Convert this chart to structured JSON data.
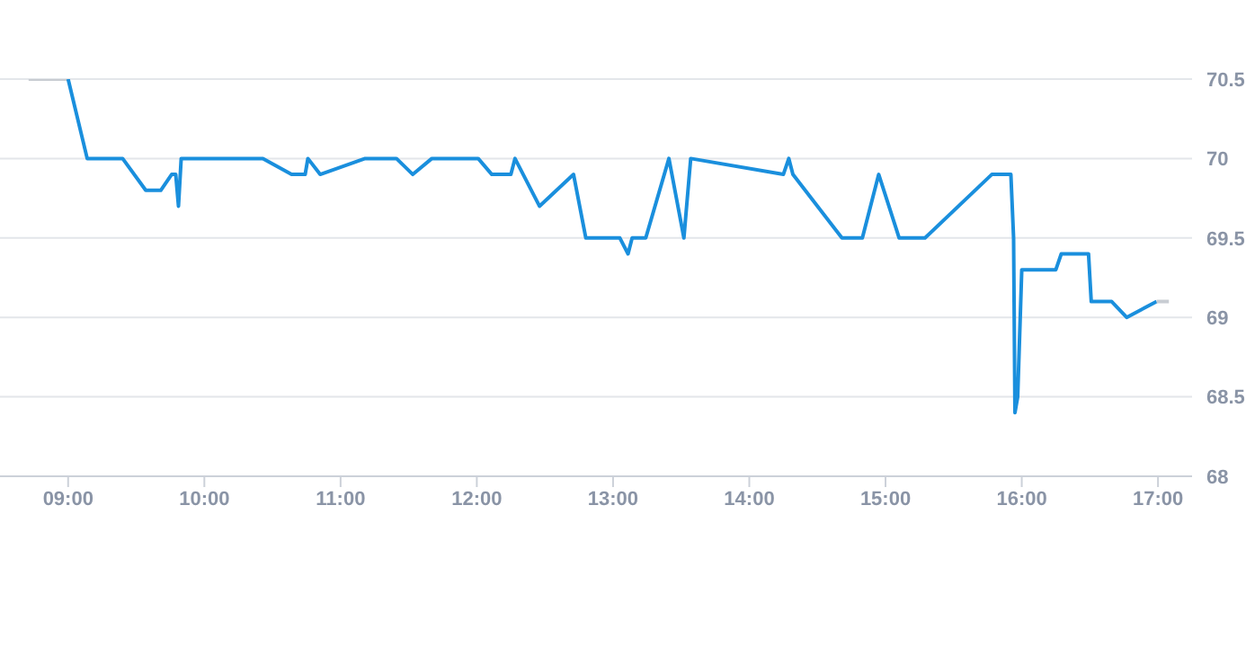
{
  "chart_data": {
    "type": "line",
    "xlim": [
      8.5,
      17.25
    ],
    "xticks": [
      {
        "value": 9,
        "label": "09:00"
      },
      {
        "value": 10,
        "label": "10:00"
      },
      {
        "value": 11,
        "label": "11:00"
      },
      {
        "value": 12,
        "label": "12:00"
      },
      {
        "value": 13,
        "label": "13:00"
      },
      {
        "value": 14,
        "label": "14:00"
      },
      {
        "value": 15,
        "label": "15:00"
      },
      {
        "value": 16,
        "label": "16:00"
      },
      {
        "value": 17,
        "label": "17:00"
      }
    ],
    "ylim": [
      68,
      70.5
    ],
    "yticks": [
      68,
      68.5,
      69,
      69.5,
      70,
      70.5
    ],
    "grid": "y",
    "marker": "none",
    "line_style": "solid",
    "series": [
      {
        "color": "#c8ccd2",
        "x": [
          8.71,
          9.0
        ],
        "values": [
          70.5,
          70.5
        ]
      },
      {
        "color": "#1a8fdd",
        "x": [
          9.0,
          9.14,
          9.4,
          9.57,
          9.68,
          9.76,
          9.79,
          9.81,
          9.83,
          10.43,
          10.64,
          10.74,
          10.76,
          10.85,
          11.18,
          11.41,
          11.53,
          11.67,
          12.01,
          12.11,
          12.25,
          12.28,
          12.46,
          12.71,
          12.8,
          13.05,
          13.11,
          13.14,
          13.24,
          13.41,
          13.52,
          13.57,
          14.25,
          14.29,
          14.32,
          14.68,
          14.83,
          14.95,
          15.1,
          15.29,
          15.78,
          15.92,
          15.94,
          15.95,
          15.97,
          16.0,
          16.25,
          16.29,
          16.49,
          16.51,
          16.66,
          16.77,
          16.99
        ],
        "values": [
          70.5,
          70.0,
          70.0,
          69.8,
          69.8,
          69.9,
          69.9,
          69.7,
          70.0,
          70.0,
          69.9,
          69.9,
          70.0,
          69.9,
          70.0,
          70.0,
          69.9,
          70.0,
          70.0,
          69.9,
          69.9,
          70.0,
          69.7,
          69.9,
          69.5,
          69.5,
          69.4,
          69.5,
          69.5,
          70.0,
          69.5,
          70.0,
          69.9,
          70.0,
          69.9,
          69.5,
          69.5,
          69.9,
          69.5,
          69.5,
          69.9,
          69.9,
          69.5,
          68.4,
          68.5,
          69.3,
          69.3,
          69.4,
          69.4,
          69.1,
          69.1,
          69.0,
          69.1
        ]
      },
      {
        "color": "#c8ccd2",
        "x": [
          16.99,
          17.08
        ],
        "values": [
          69.1,
          69.1
        ]
      }
    ]
  }
}
